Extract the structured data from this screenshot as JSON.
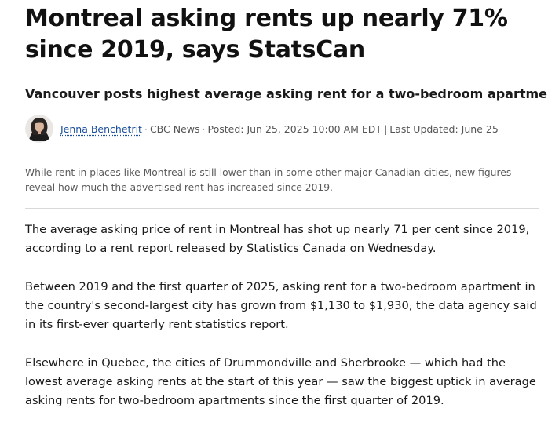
{
  "article": {
    "headline": "Montreal asking rents up nearly 71% since 2019, says StatsCan",
    "deck": "Vancouver posts highest average asking rent for a two-bedroom apartment",
    "byline": {
      "author": "Jenna Benchetrit",
      "outlet": "CBC News",
      "posted": "Posted: Jun 25, 2025 10:00 AM EDT",
      "updated": "Last Updated: June 25",
      "dot": "·",
      "bar": "|"
    },
    "caption": "While rent in places like Montreal is still lower than in some other major Canadian cities, new figures reveal how much the advertised rent has increased since 2019.",
    "paragraphs": [
      "The average asking price of rent in Montreal has shot up nearly 71 per cent since 2019, according to a rent report released by Statistics Canada on Wednesday.",
      "Between 2019 and the first quarter of 2025, asking rent for a two-bedroom apartment in the country's second-largest city has grown from $1,130 to $1,930, the data agency said in its first-ever quarterly rent statistics report.",
      "Elsewhere in Quebec, the cities of Drummondville and Sherbrooke — which had the lowest average asking rents at the start of this year — saw the biggest uptick in average asking rents for two-bedroom apartments since the first quarter of 2019."
    ]
  },
  "colors": {
    "author_link": "#1a4e9c",
    "meta_text": "#545454",
    "divider": "#d9d9d9"
  }
}
